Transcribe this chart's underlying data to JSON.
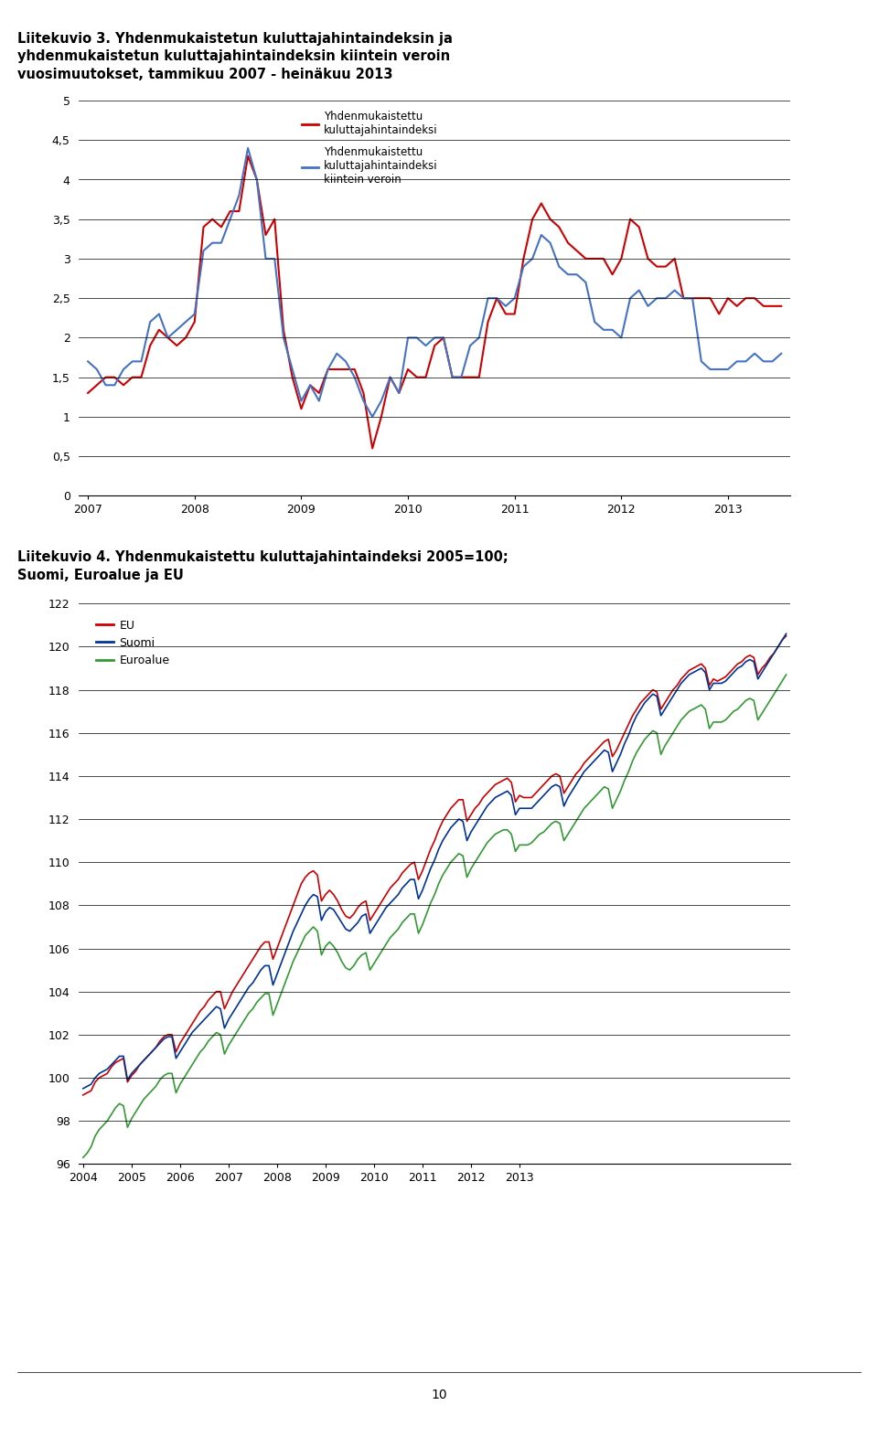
{
  "title3_line1": "Liitekuvio 3. Yhdenmukaistetun kuluttajahintaindeksin ja",
  "title3_line2": "yhdenmukaistetun kuluttajahintaindeksin kiintein veroin",
  "title3_line3": "vuosimuutokset, tammikuu 2007 - heinäkuu 2013",
  "title4_line1": "Liitekuvio 4. Yhdenmukaistettu kuluttajahintaindeksi 2005=100;",
  "title4_line2": "Suomi, Euroalue ja EU",
  "fig3": {
    "ylim": [
      0,
      5
    ],
    "yticks": [
      0,
      0.5,
      1,
      1.5,
      2,
      2.5,
      3,
      3.5,
      4,
      4.5,
      5
    ],
    "ytick_labels": [
      "0",
      "0,5",
      "1",
      "1,5",
      "2",
      "2,5",
      "3",
      "3,5",
      "4",
      "4,5",
      "5"
    ],
    "xtick_labels": [
      "2007",
      "2008",
      "2009",
      "2010",
      "2011",
      "2012",
      "2013"
    ],
    "legend1": "Yhdenmukaistettu\nkuluttajahintaindeksi",
    "legend2": "Yhdenmukaistettu\nkuluttajahintaindeksi\nkiintein veroin",
    "color_red": "#CC0000",
    "color_blue": "#4472C4"
  },
  "fig4": {
    "ylim": [
      96,
      122
    ],
    "yticks": [
      96,
      98,
      100,
      102,
      104,
      106,
      108,
      110,
      112,
      114,
      116,
      118,
      120,
      122
    ],
    "ytick_labels": [
      "96",
      "98",
      "100",
      "102",
      "104",
      "106",
      "108",
      "110",
      "112",
      "114",
      "116",
      "118",
      "120",
      "122"
    ],
    "xtick_labels": [
      "2004",
      "2005",
      "2006",
      "2007",
      "2008",
      "2009",
      "2010",
      "2011",
      "2012",
      "2013"
    ],
    "legend_eu": "EU",
    "legend_suomi": "Suomi",
    "legend_euroalue": "Euroalue",
    "color_eu": "#CC0000",
    "color_suomi": "#003399",
    "color_euroalue": "#339933"
  },
  "page_number": "10",
  "background_color": "#ffffff",
  "red3": [
    1.3,
    1.4,
    1.5,
    1.5,
    1.4,
    1.5,
    1.5,
    1.9,
    2.1,
    2.0,
    1.9,
    2.0,
    2.2,
    3.4,
    3.5,
    3.4,
    3.6,
    3.6,
    4.3,
    4.0,
    3.3,
    3.5,
    2.1,
    1.5,
    1.1,
    1.4,
    1.3,
    1.6,
    1.6,
    1.6,
    1.6,
    1.3,
    0.6,
    1.0,
    1.5,
    1.3,
    1.6,
    1.5,
    1.5,
    1.9,
    2.0,
    1.5,
    1.5,
    1.5,
    1.5,
    2.2,
    2.5,
    2.3,
    2.3,
    3.0,
    3.5,
    3.7,
    3.5,
    3.4,
    3.2,
    3.1,
    3.0,
    3.0,
    3.0,
    2.8,
    3.0,
    3.5,
    3.4,
    3.0,
    2.9,
    2.9,
    3.0,
    2.5,
    2.5,
    2.5,
    2.5,
    2.3,
    2.5,
    2.4,
    2.5,
    2.5,
    2.4,
    2.4,
    2.4
  ],
  "blue3": [
    1.7,
    1.6,
    1.4,
    1.4,
    1.6,
    1.7,
    1.7,
    2.2,
    2.3,
    2.0,
    2.1,
    2.2,
    2.3,
    3.1,
    3.2,
    3.2,
    3.5,
    3.8,
    4.4,
    4.0,
    3.0,
    3.0,
    2.0,
    1.6,
    1.2,
    1.4,
    1.2,
    1.6,
    1.8,
    1.7,
    1.5,
    1.2,
    1.0,
    1.2,
    1.5,
    1.3,
    2.0,
    2.0,
    1.9,
    2.0,
    2.0,
    1.5,
    1.5,
    1.9,
    2.0,
    2.5,
    2.5,
    2.4,
    2.5,
    2.9,
    3.0,
    3.3,
    3.2,
    2.9,
    2.8,
    2.8,
    2.7,
    2.2,
    2.1,
    2.1,
    2.0,
    2.5,
    2.6,
    2.4,
    2.5,
    2.5,
    2.6,
    2.5,
    2.5,
    1.7,
    1.6,
    1.6,
    1.6,
    1.7,
    1.7,
    1.8,
    1.7,
    1.7,
    1.8
  ],
  "eu_vals": [
    99.2,
    99.3,
    99.4,
    99.8,
    100.0,
    100.1,
    100.2,
    100.5,
    100.7,
    100.8,
    100.9,
    99.8,
    100.1,
    100.3,
    100.6,
    100.8,
    101.0,
    101.2,
    101.4,
    101.7,
    101.9,
    102.0,
    102.0,
    101.2,
    101.6,
    101.9,
    102.2,
    102.5,
    102.8,
    103.1,
    103.3,
    103.6,
    103.8,
    104.0,
    104.0,
    103.2,
    103.6,
    104.0,
    104.3,
    104.6,
    104.9,
    105.2,
    105.5,
    105.8,
    106.1,
    106.3,
    106.3,
    105.5,
    106.0,
    106.5,
    107.0,
    107.5,
    108.0,
    108.5,
    109.0,
    109.3,
    109.5,
    109.6,
    109.4,
    108.2,
    108.5,
    108.7,
    108.5,
    108.2,
    107.8,
    107.5,
    107.4,
    107.6,
    107.9,
    108.1,
    108.2,
    107.3,
    107.6,
    107.9,
    108.2,
    108.5,
    108.8,
    109.0,
    109.2,
    109.5,
    109.7,
    109.9,
    110.0,
    109.2,
    109.6,
    110.1,
    110.6,
    111.0,
    111.5,
    111.9,
    112.2,
    112.5,
    112.7,
    112.9,
    112.9,
    111.9,
    112.2,
    112.5,
    112.7,
    113.0,
    113.2,
    113.4,
    113.6,
    113.7,
    113.8,
    113.9,
    113.7,
    112.8,
    113.1,
    113.0,
    113.0,
    113.0,
    113.2,
    113.4,
    113.6,
    113.8,
    114.0,
    114.1,
    114.0,
    113.2,
    113.5,
    113.8,
    114.1,
    114.3,
    114.6,
    114.8,
    115.0,
    115.2,
    115.4,
    115.6,
    115.7,
    114.9,
    115.2,
    115.6,
    116.0,
    116.4,
    116.8,
    117.1,
    117.4,
    117.6,
    117.8,
    118.0,
    117.9,
    117.1,
    117.4,
    117.7,
    118.0,
    118.2,
    118.5,
    118.7,
    118.9,
    119.0,
    119.1,
    119.2,
    119.0,
    118.2,
    118.5,
    118.4,
    118.5,
    118.6,
    118.8,
    119.0,
    119.2,
    119.3,
    119.5,
    119.6,
    119.5,
    118.7,
    119.0,
    119.2,
    119.5,
    119.7,
    120.0,
    120.3,
    120.5
  ],
  "suomi_vals": [
    99.5,
    99.6,
    99.7,
    100.0,
    100.2,
    100.3,
    100.4,
    100.6,
    100.8,
    101.0,
    101.0,
    99.9,
    100.2,
    100.4,
    100.6,
    100.8,
    101.0,
    101.2,
    101.4,
    101.6,
    101.8,
    101.9,
    101.9,
    100.9,
    101.2,
    101.5,
    101.8,
    102.1,
    102.3,
    102.5,
    102.7,
    102.9,
    103.1,
    103.3,
    103.2,
    102.3,
    102.7,
    103.0,
    103.3,
    103.6,
    103.9,
    104.2,
    104.4,
    104.7,
    105.0,
    105.2,
    105.2,
    104.3,
    104.8,
    105.3,
    105.8,
    106.3,
    106.8,
    107.2,
    107.6,
    108.0,
    108.3,
    108.5,
    108.4,
    107.3,
    107.7,
    107.9,
    107.8,
    107.5,
    107.2,
    106.9,
    106.8,
    107.0,
    107.2,
    107.5,
    107.6,
    106.7,
    107.0,
    107.3,
    107.6,
    107.9,
    108.1,
    108.3,
    108.5,
    108.8,
    109.0,
    109.2,
    109.2,
    108.3,
    108.7,
    109.2,
    109.7,
    110.1,
    110.6,
    111.0,
    111.3,
    111.6,
    111.8,
    112.0,
    111.9,
    111.0,
    111.4,
    111.7,
    112.0,
    112.3,
    112.6,
    112.8,
    113.0,
    113.1,
    113.2,
    113.3,
    113.1,
    112.2,
    112.5,
    112.5,
    112.5,
    112.5,
    112.7,
    112.9,
    113.1,
    113.3,
    113.5,
    113.6,
    113.5,
    112.6,
    113.0,
    113.3,
    113.6,
    113.9,
    114.2,
    114.4,
    114.6,
    114.8,
    115.0,
    115.2,
    115.1,
    114.2,
    114.6,
    115.0,
    115.5,
    115.9,
    116.4,
    116.8,
    117.1,
    117.4,
    117.6,
    117.8,
    117.7,
    116.8,
    117.1,
    117.4,
    117.7,
    118.0,
    118.3,
    118.5,
    118.7,
    118.8,
    118.9,
    119.0,
    118.8,
    118.0,
    118.3,
    118.3,
    118.3,
    118.4,
    118.6,
    118.8,
    119.0,
    119.1,
    119.3,
    119.4,
    119.3,
    118.5,
    118.8,
    119.1,
    119.4,
    119.7,
    120.0,
    120.3,
    120.6
  ],
  "euro_vals": [
    96.3,
    96.5,
    96.8,
    97.3,
    97.6,
    97.8,
    98.0,
    98.3,
    98.6,
    98.8,
    98.7,
    97.7,
    98.1,
    98.4,
    98.7,
    99.0,
    99.2,
    99.4,
    99.6,
    99.9,
    100.1,
    100.2,
    100.2,
    99.3,
    99.7,
    100.0,
    100.3,
    100.6,
    100.9,
    101.2,
    101.4,
    101.7,
    101.9,
    102.1,
    102.0,
    101.1,
    101.5,
    101.8,
    102.1,
    102.4,
    102.7,
    103.0,
    103.2,
    103.5,
    103.7,
    103.9,
    103.9,
    102.9,
    103.4,
    103.9,
    104.4,
    104.9,
    105.4,
    105.8,
    106.2,
    106.6,
    106.8,
    107.0,
    106.8,
    105.7,
    106.1,
    106.3,
    106.1,
    105.8,
    105.4,
    105.1,
    105.0,
    105.2,
    105.5,
    105.7,
    105.8,
    105.0,
    105.3,
    105.6,
    105.9,
    106.2,
    106.5,
    106.7,
    106.9,
    107.2,
    107.4,
    107.6,
    107.6,
    106.7,
    107.1,
    107.6,
    108.1,
    108.5,
    109.0,
    109.4,
    109.7,
    110.0,
    110.2,
    110.4,
    110.3,
    109.3,
    109.7,
    110.0,
    110.3,
    110.6,
    110.9,
    111.1,
    111.3,
    111.4,
    111.5,
    111.5,
    111.3,
    110.5,
    110.8,
    110.8,
    110.8,
    110.9,
    111.1,
    111.3,
    111.4,
    111.6,
    111.8,
    111.9,
    111.8,
    111.0,
    111.3,
    111.6,
    111.9,
    112.2,
    112.5,
    112.7,
    112.9,
    113.1,
    113.3,
    113.5,
    113.4,
    112.5,
    112.9,
    113.3,
    113.8,
    114.2,
    114.7,
    115.1,
    115.4,
    115.7,
    115.9,
    116.1,
    116.0,
    115.0,
    115.4,
    115.7,
    116.0,
    116.3,
    116.6,
    116.8,
    117.0,
    117.1,
    117.2,
    117.3,
    117.1,
    116.2,
    116.5,
    116.5,
    116.5,
    116.6,
    116.8,
    117.0,
    117.1,
    117.3,
    117.5,
    117.6,
    117.5,
    116.6,
    116.9,
    117.2,
    117.5,
    117.8,
    118.1,
    118.4,
    118.7
  ]
}
